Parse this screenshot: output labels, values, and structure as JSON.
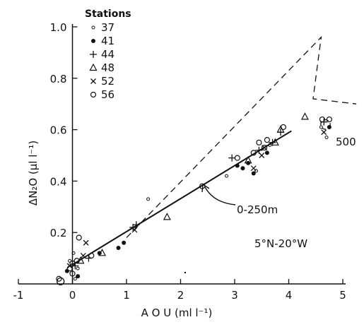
{
  "chart_data": {
    "type": "scatter",
    "xlabel": "A O U   (ml l⁻¹)",
    "ylabel": "ΔN₂O   (μl l⁻¹)",
    "xlim": [
      -1,
      5
    ],
    "ylim": [
      0,
      1.0
    ],
    "x_ticks": [
      -1,
      0,
      1,
      2,
      3,
      4,
      5
    ],
    "y_ticks": [
      0.2,
      0.4,
      0.6,
      0.8,
      1.0
    ],
    "x_tick_labels": [
      "-1",
      "0",
      "1",
      "2",
      "3",
      "4",
      "5"
    ],
    "y_tick_labels": [
      "0.2",
      "0.4",
      "0.6",
      "0.8",
      "1.0"
    ],
    "legend_title": "Stations",
    "legend_position": "top-left",
    "grid": false,
    "series": [
      {
        "name": "37",
        "marker": "small-circle",
        "points": [
          [
            -0.05,
            0.09
          ],
          [
            0.02,
            0.12
          ],
          [
            0.05,
            0.02
          ],
          [
            1.4,
            0.33
          ],
          [
            2.85,
            0.42
          ],
          [
            3.4,
            0.44
          ],
          [
            4.6,
            0.61
          ],
          [
            4.7,
            0.57
          ],
          [
            0.1,
            0.06
          ],
          [
            3.65,
            0.54
          ]
        ]
      },
      {
        "name": "41",
        "marker": "dot",
        "points": [
          [
            -0.1,
            0.05
          ],
          [
            0.5,
            0.12
          ],
          [
            0.85,
            0.14
          ],
          [
            0.95,
            0.16
          ],
          [
            3.15,
            0.45
          ],
          [
            3.35,
            0.43
          ],
          [
            3.6,
            0.51
          ],
          [
            4.75,
            0.61
          ],
          [
            3.25,
            0.47
          ],
          [
            3.05,
            0.46
          ],
          [
            0.1,
            0.03
          ]
        ]
      },
      {
        "name": "44",
        "marker": "plus",
        "points": [
          [
            0.3,
            0.1
          ],
          [
            1.12,
            0.22
          ],
          [
            1.18,
            0.23
          ],
          [
            2.95,
            0.49
          ],
          [
            3.7,
            0.55
          ],
          [
            3.85,
            0.59
          ],
          [
            4.65,
            0.63
          ],
          [
            0.05,
            0.07
          ],
          [
            3.45,
            0.52
          ]
        ]
      },
      {
        "name": "48",
        "marker": "triangle",
        "points": [
          [
            0.55,
            0.12
          ],
          [
            1.75,
            0.26
          ],
          [
            3.25,
            0.48
          ],
          [
            3.75,
            0.55
          ],
          [
            3.85,
            0.6
          ],
          [
            4.3,
            0.65
          ],
          [
            0.15,
            0.09
          ]
        ]
      },
      {
        "name": "52",
        "marker": "x",
        "points": [
          [
            0.2,
            0.11
          ],
          [
            0.25,
            0.16
          ],
          [
            1.15,
            0.21
          ],
          [
            3.35,
            0.45
          ],
          [
            3.5,
            0.5
          ],
          [
            3.55,
            0.53
          ],
          [
            4.65,
            0.59
          ],
          [
            -0.05,
            0.07
          ]
        ]
      },
      {
        "name": "56",
        "marker": "circle",
        "points": [
          [
            -0.25,
            0.02
          ],
          [
            -0.05,
            0.06
          ],
          [
            0.0,
            0.08
          ],
          [
            0.08,
            0.09
          ],
          [
            0.12,
            0.18
          ],
          [
            0.35,
            0.11
          ],
          [
            2.4,
            0.38
          ],
          [
            3.05,
            0.49
          ],
          [
            3.35,
            0.51
          ],
          [
            3.45,
            0.55
          ],
          [
            3.6,
            0.56
          ],
          [
            3.9,
            0.61
          ],
          [
            4.75,
            0.64
          ],
          [
            4.62,
            0.64
          ],
          [
            0.0,
            0.04
          ],
          [
            3.55,
            0.53
          ]
        ]
      }
    ],
    "regression_line": {
      "label": "0-250m",
      "x": [
        0,
        4.05
      ],
      "y": [
        0.075,
        0.595
      ]
    },
    "dashed_outline": [
      [
        1.0,
        0.18
      ],
      [
        4.6,
        0.96
      ],
      [
        4.45,
        0.72
      ],
      [
        5.25,
        0.7
      ]
    ],
    "highlight_region": {
      "label": "500",
      "center": [
        4.68,
        0.62
      ],
      "radius": 0.08
    },
    "annotations": {
      "region": "5°N-20°W",
      "depth_label": "0-250m",
      "deep_label": "500"
    }
  }
}
